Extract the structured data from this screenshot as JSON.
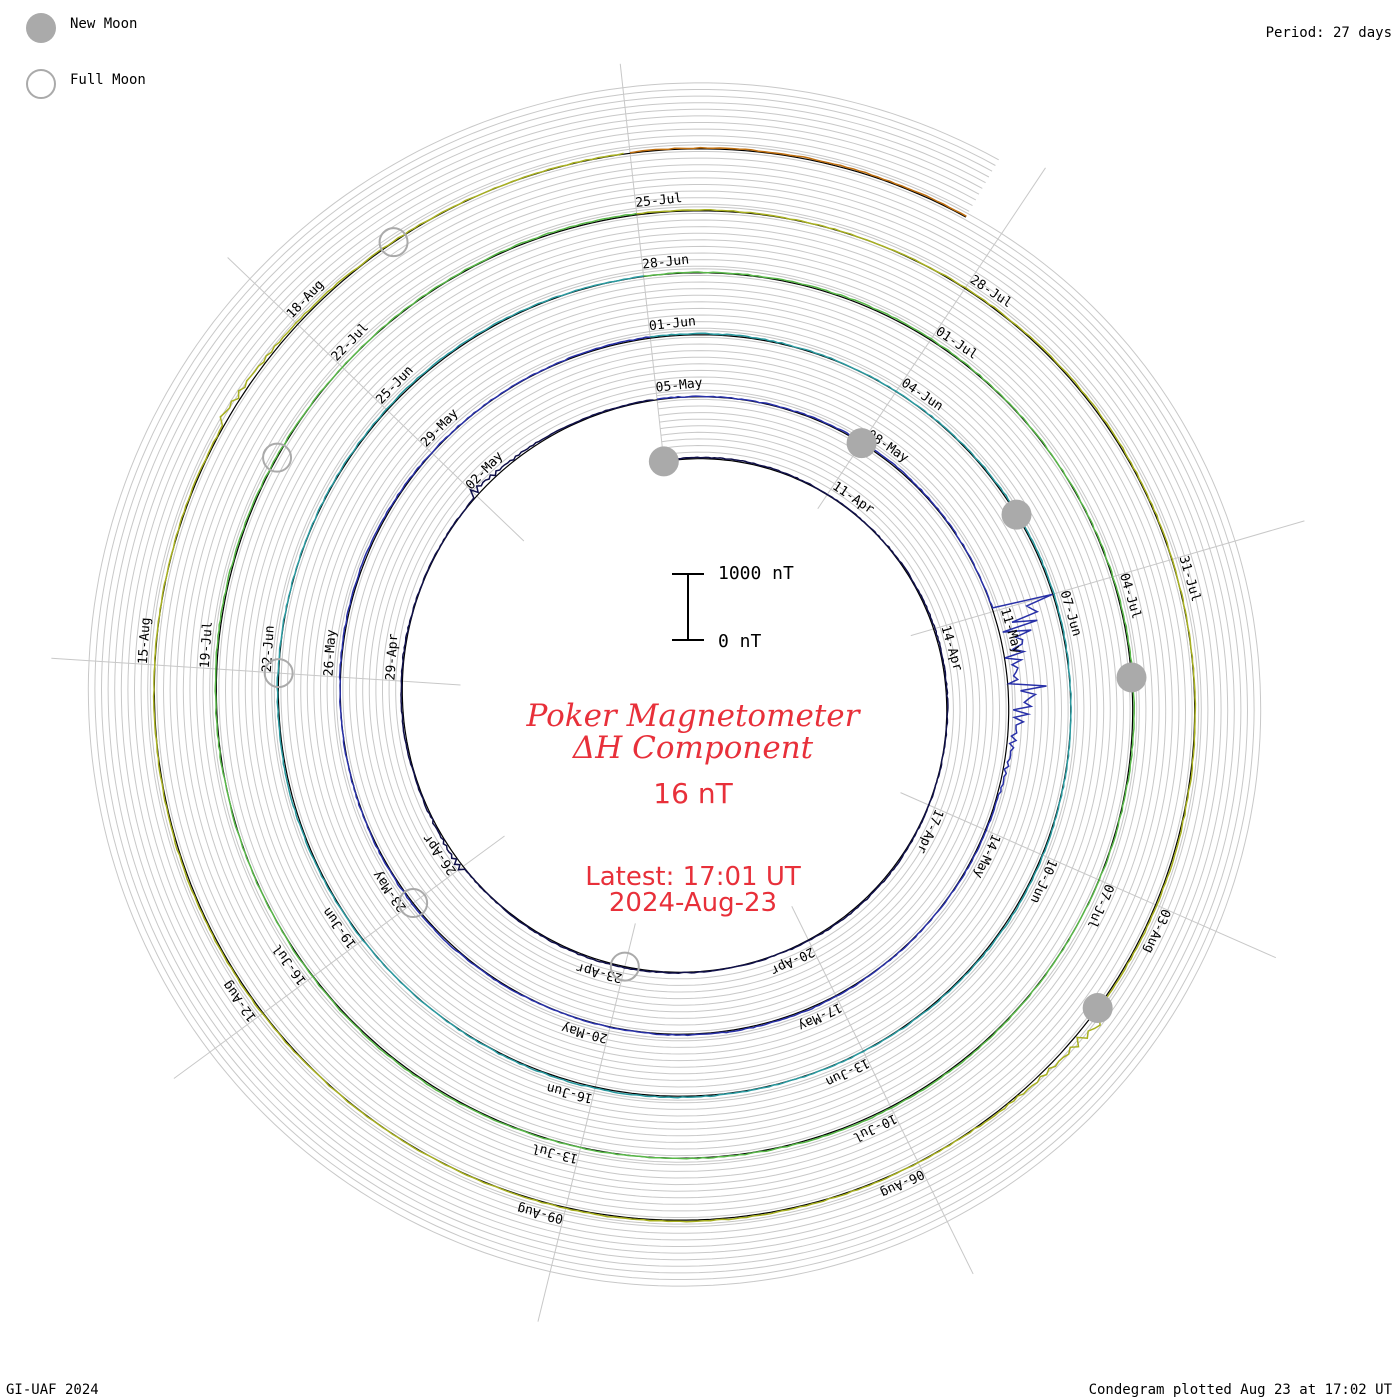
{
  "legend": {
    "new_moon_label": "New Moon",
    "full_moon_label": "Full Moon",
    "new_moon_color": "#aaaaaa",
    "full_moon_stroke": "#aaaaaa"
  },
  "period_label": "Period: 27 days",
  "footer_left": "GI-UAF 2024",
  "footer_right": "Condegram plotted Aug 23 at 17:02 UT",
  "title": {
    "line1": "Poker Magnetometer",
    "line2": "ΔH Component",
    "value": "16 nT",
    "latest": "Latest: 17:01 UT",
    "date": "2024-Aug-23",
    "color": "#e8303a"
  },
  "scale_bar": {
    "top_label": "1000 nT",
    "bottom_label": "0 nT"
  },
  "chart_data": {
    "type": "line",
    "projection": "polar condegram (spiral, one revolution = 27 days)",
    "start": "2024-04-08",
    "end": "2024-08-23 17:01 UT",
    "period_days": 27,
    "scale_nT": [
      0,
      1000
    ],
    "series_colors": [
      "#10104a",
      "#2830a8",
      "#2a9aa0",
      "#58b848",
      "#a8b020",
      "#c07010",
      "#c02010"
    ],
    "date_labels": [
      "11-Apr",
      "14-Apr",
      "17-Apr",
      "20-Apr",
      "23-Apr",
      "26-Apr",
      "29-Apr",
      "02-May",
      "05-May",
      "08-May",
      "11-May",
      "14-May",
      "17-May",
      "20-May",
      "23-May",
      "26-May",
      "29-May",
      "01-Jun",
      "04-Jun",
      "07-Jun",
      "10-Jun",
      "13-Jun",
      "16-Jun",
      "19-Jun",
      "22-Jun",
      "25-Jun",
      "28-Jun",
      "01-Jul",
      "04-Jul",
      "07-Jul",
      "10-Jul",
      "13-Jul",
      "16-Jul",
      "19-Jul",
      "22-Jul",
      "25-Jul",
      "28-Jul",
      "31-Jul",
      "03-Aug",
      "06-Aug",
      "09-Aug",
      "12-Aug",
      "15-Aug",
      "18-Aug"
    ],
    "new_moons": [
      "2024-04-08",
      "2024-05-08",
      "2024-06-06",
      "2024-07-05",
      "2024-08-04"
    ],
    "full_moons": [
      "2024-04-23",
      "2024-05-23",
      "2024-06-22",
      "2024-07-21",
      "2024-08-19"
    ],
    "disturbances": [
      {
        "date": "2024-05-11",
        "peak_nT": 1000,
        "color": "#2830a8"
      },
      {
        "date": "2024-05-12",
        "peak_nT": 500,
        "color": "#2830a8"
      },
      {
        "date": "2024-05-02",
        "peak_nT": 120,
        "color": "#2830a8"
      },
      {
        "date": "2024-04-26",
        "peak_nT": 90,
        "color": "#2830a8"
      },
      {
        "date": "2024-08-04",
        "peak_nT": 250,
        "color": "#c07010"
      },
      {
        "date": "2024-08-17",
        "peak_nT": 120,
        "color": "#c02010"
      }
    ]
  }
}
